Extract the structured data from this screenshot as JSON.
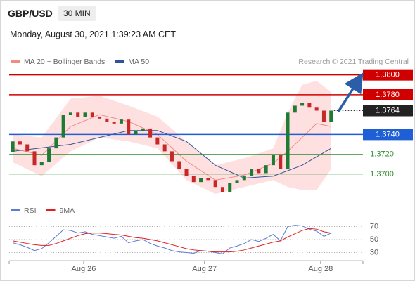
{
  "header": {
    "symbol": "GBP/USD",
    "interval": "30 MIN",
    "timestamp": "Monday, August 30, 2021 1:39:23 AM CET"
  },
  "chart_data": [
    {
      "type": "candlestick",
      "attribution": "Research © 2021 Trading Central",
      "up_color": "#1e7b34",
      "down_color": "#c62828",
      "open": 1.3722,
      "close": [
        1.3733,
        1.373,
        1.3723,
        1.3709,
        1.3712,
        1.3726,
        1.3737,
        1.376,
        1.3762,
        1.3758,
        1.3762,
        1.3758,
        1.3756,
        1.3753,
        1.3751,
        1.3755,
        1.374,
        1.3744,
        1.3746,
        1.3737,
        1.373,
        1.3723,
        1.3713,
        1.3705,
        1.3698,
        1.3692,
        1.3696,
        1.3694,
        1.3687,
        1.3682,
        1.3691,
        1.3694,
        1.3698,
        1.3705,
        1.3701,
        1.3709,
        1.3719,
        1.3705,
        1.3762,
        1.3769,
        1.3772,
        1.3767,
        1.3764,
        1.3753,
        1.3764
      ],
      "series": [
        {
          "name": "MA 20 + Bollinger Bands",
          "color": "#f28b82",
          "band_color": "#ffd6d6",
          "x": [
            0,
            4,
            8,
            12,
            16,
            20,
            24,
            28,
            32,
            36,
            38,
            40,
            42,
            44
          ],
          "values": [
            1.3726,
            1.3719,
            1.3748,
            1.376,
            1.3753,
            1.374,
            1.3713,
            1.3694,
            1.3699,
            1.3711,
            1.3723,
            1.3737,
            1.3751,
            1.3748
          ],
          "upper": [
            1.374,
            1.3737,
            1.3776,
            1.3779,
            1.3769,
            1.3758,
            1.3733,
            1.3709,
            1.3716,
            1.3726,
            1.3762,
            1.379,
            1.3794,
            1.3783
          ],
          "lower": [
            1.3712,
            1.3698,
            1.3723,
            1.3737,
            1.3733,
            1.3726,
            1.3694,
            1.368,
            1.3687,
            1.3694,
            1.3687,
            1.3684,
            1.3684,
            1.3705
          ]
        },
        {
          "name": "MA 50",
          "color": "#2f5597",
          "x": [
            0,
            8,
            16,
            20,
            24,
            28,
            32,
            36,
            40,
            44
          ],
          "values": [
            1.3723,
            1.373,
            1.3744,
            1.3744,
            1.3733,
            1.3709,
            1.3696,
            1.3698,
            1.3709,
            1.3726
          ]
        }
      ],
      "levels": [
        {
          "value": 1.38,
          "label": "1.3800",
          "color": "#d00000",
          "style": "box"
        },
        {
          "value": 1.378,
          "label": "1.3780",
          "color": "#d00000",
          "style": "box"
        },
        {
          "value": 1.3764,
          "label": "1.3764",
          "color": "#222222",
          "style": "current"
        },
        {
          "value": 1.374,
          "label": "1.3740",
          "color": "#1f5fd6",
          "style": "box"
        },
        {
          "value": 1.372,
          "label": "1.3720",
          "color": "#2e8b2e",
          "style": "text"
        },
        {
          "value": 1.37,
          "label": "1.3700",
          "color": "#2e8b2e",
          "style": "text"
        }
      ],
      "xlim": [
        -0.5,
        48.4
      ],
      "xticks": [
        {
          "value": 9.8,
          "label": "Aug 26"
        },
        {
          "value": 26.5,
          "label": "Aug 27"
        },
        {
          "value": 42.55,
          "label": "Aug 28"
        }
      ],
      "ylim": [
        1.3673,
        1.3804
      ]
    },
    {
      "type": "line",
      "series": [
        {
          "name": "RSI",
          "color": "#5b7bd5",
          "values": [
            45,
            42,
            38,
            33,
            36,
            45,
            55,
            65,
            64,
            60,
            62,
            58,
            56,
            54,
            52,
            55,
            45,
            48,
            50,
            44,
            40,
            37,
            33,
            31,
            30,
            29,
            33,
            32,
            30,
            28,
            37,
            40,
            44,
            50,
            47,
            52,
            58,
            48,
            70,
            72,
            71,
            66,
            63,
            55,
            60
          ]
        },
        {
          "name": "9MA",
          "color": "#e02020",
          "values": [
            48,
            46,
            44,
            42,
            41,
            41,
            44,
            48,
            52,
            56,
            59,
            60,
            60,
            59,
            58,
            57,
            55,
            53,
            52,
            50,
            48,
            45,
            42,
            39,
            36,
            34,
            33,
            32,
            31,
            31,
            31,
            32,
            34,
            37,
            40,
            43,
            46,
            48,
            54,
            59,
            64,
            67,
            66,
            62,
            60
          ]
        }
      ],
      "xlim": [
        -0.5,
        48.4
      ],
      "ylim": [
        23,
        77
      ],
      "yticks": [
        30,
        50,
        70
      ]
    }
  ]
}
